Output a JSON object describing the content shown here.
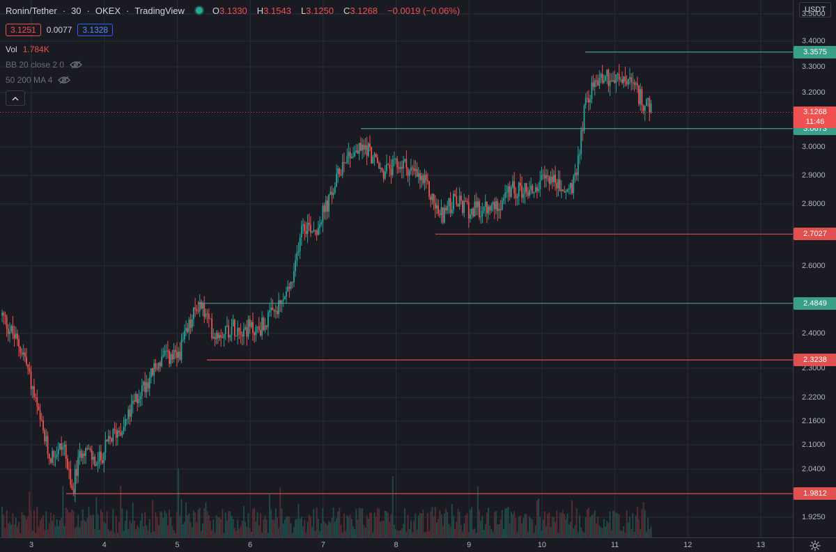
{
  "legend": {
    "symbol": "Ronin/Tether",
    "interval": "30",
    "exchange": "OKEX",
    "source": "TradingView",
    "sep": "·",
    "ohlc": [
      {
        "label": "O",
        "value": "3.1330"
      },
      {
        "label": "H",
        "value": "3.1543"
      },
      {
        "label": "L",
        "value": "3.1250"
      },
      {
        "label": "C",
        "value": "3.1268"
      }
    ],
    "change": "−0.0019 (−0.06%)",
    "bid": "3.1251",
    "spread": "0.0077",
    "ask": "3.1328",
    "volume_label": "Vol",
    "volume_value": "1.784K",
    "indicator_bb": "BB 20 close 2 0",
    "indicator_ma": "50 200 MA 4"
  },
  "colors": {
    "up": "#26a69a",
    "down": "#ef5350",
    "grid": "#2a2d37",
    "level_green": "#4c9c8e",
    "level_red": "#d4504d",
    "badge_green": "#3a9f88",
    "badge_red": "#e0504e"
  },
  "price_scale": {
    "currency": "USDT",
    "ticks": [
      "3.5000",
      "3.4000",
      "3.3000",
      "3.2000",
      "3.0000",
      "2.9000",
      "2.8000",
      "2.6000",
      "2.4000",
      "2.3000",
      "2.2200",
      "2.1600",
      "2.1000",
      "2.0400",
      "1.9250"
    ],
    "current_price": "3.1268",
    "countdown": "11:46"
  },
  "time_scale": {
    "ticks": [
      "3",
      "4",
      "5",
      "6",
      "7",
      "8",
      "9",
      "10",
      "11",
      "12",
      "13"
    ]
  },
  "levels": [
    {
      "price": "3.3575",
      "kind": "resistance",
      "color": "green"
    },
    {
      "price": "3.0673",
      "kind": "support",
      "color": "green"
    },
    {
      "price": "2.7027",
      "kind": "support",
      "color": "red"
    },
    {
      "price": "2.4849",
      "kind": "resistance",
      "color": "green"
    },
    {
      "price": "2.3238",
      "kind": "support",
      "color": "red"
    },
    {
      "price": "1.9812",
      "kind": "support",
      "color": "red"
    }
  ],
  "chart_data": {
    "type": "candlestick",
    "x_unit": "day",
    "y_unit": "USDT",
    "grid": true,
    "price_scale_side": "right",
    "day_range": [
      2.6,
      13.5
    ],
    "price_range": [
      1.88,
      3.52
    ],
    "anchor_closes": [
      [
        2.6,
        2.45
      ],
      [
        2.9,
        2.34
      ],
      [
        3.1,
        2.17
      ],
      [
        3.25,
        2.07
      ],
      [
        3.45,
        2.1
      ],
      [
        3.55,
        1.98
      ],
      [
        3.7,
        2.1
      ],
      [
        3.9,
        2.05
      ],
      [
        4.1,
        2.12
      ],
      [
        4.3,
        2.16
      ],
      [
        4.5,
        2.24
      ],
      [
        4.8,
        2.33
      ],
      [
        5.0,
        2.33
      ],
      [
        5.3,
        2.49
      ],
      [
        5.5,
        2.4
      ],
      [
        5.8,
        2.42
      ],
      [
        6.1,
        2.41
      ],
      [
        6.4,
        2.47
      ],
      [
        6.6,
        2.56
      ],
      [
        6.7,
        2.74
      ],
      [
        6.9,
        2.72
      ],
      [
        7.1,
        2.82
      ],
      [
        7.3,
        2.97
      ],
      [
        7.6,
        3.0
      ],
      [
        7.8,
        2.91
      ],
      [
        8.1,
        2.94
      ],
      [
        8.4,
        2.87
      ],
      [
        8.6,
        2.76
      ],
      [
        8.8,
        2.81
      ],
      [
        9.0,
        2.78
      ],
      [
        9.3,
        2.78
      ],
      [
        9.6,
        2.85
      ],
      [
        9.9,
        2.85
      ],
      [
        10.1,
        2.9
      ],
      [
        10.3,
        2.84
      ],
      [
        10.45,
        2.87
      ],
      [
        10.6,
        3.17
      ],
      [
        10.8,
        3.27
      ],
      [
        11.0,
        3.25
      ],
      [
        11.2,
        3.24
      ],
      [
        11.35,
        3.18
      ],
      [
        11.5,
        3.13
      ]
    ]
  }
}
